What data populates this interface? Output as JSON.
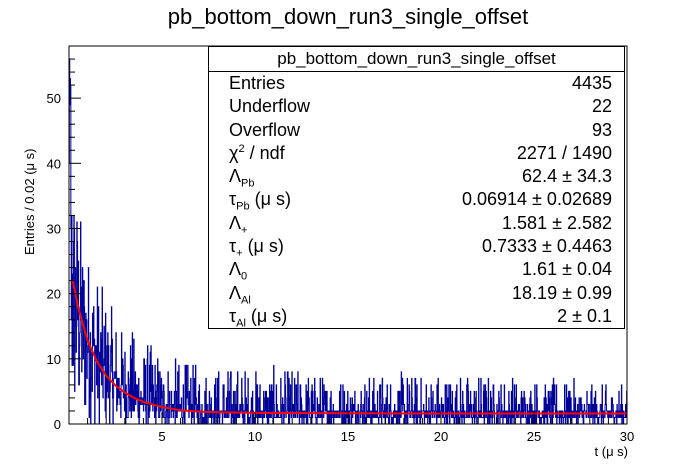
{
  "title": "pb_bottom_down_run3_single_offset",
  "chart_data": {
    "type": "bar",
    "title": "pb_bottom_down_run3_single_offset",
    "xlabel": "t (μ s)",
    "ylabel": "Entries / 0.02 (μ s)",
    "xlim": [
      0,
      30
    ],
    "ylim": [
      0,
      58
    ],
    "xticks": [
      5,
      10,
      15,
      20,
      25,
      30
    ],
    "yticks": [
      0,
      10,
      20,
      30,
      40,
      50
    ],
    "grid": false,
    "legend": "top-right",
    "histogram": {
      "name": "pb_bottom_down_run3_single_offset",
      "bin_width": 0.02,
      "color": "#000099",
      "envelope_x": [
        0.1,
        0.3,
        0.5,
        0.8,
        1.0,
        1.5,
        2.0,
        2.5,
        3.0,
        4.0,
        5.0,
        6.0,
        8.0,
        10.0,
        15.0,
        20.0,
        25.0,
        30.0
      ],
      "envelope_mean": [
        24,
        21,
        19,
        16,
        14,
        11,
        8.5,
        6.8,
        5.5,
        3.8,
        3.0,
        2.4,
        1.9,
        1.7,
        1.6,
        1.6,
        1.6,
        1.6
      ],
      "envelope_max": [
        56,
        40,
        35,
        30,
        28,
        23,
        20,
        17,
        15,
        13,
        11,
        10,
        9,
        9,
        8,
        8,
        7,
        6
      ]
    },
    "fit": {
      "name": "fit",
      "color": "#ff0000",
      "x": [
        0.2,
        0.5,
        1.0,
        1.5,
        2.0,
        2.5,
        3.0,
        3.5,
        4.0,
        5.0,
        6.0,
        7.0,
        8.0,
        10.0,
        15.0,
        20.0,
        25.0,
        30.0
      ],
      "y": [
        22.0,
        17.8,
        12.8,
        9.6,
        7.4,
        5.9,
        4.8,
        4.0,
        3.4,
        2.6,
        2.1,
        1.9,
        1.8,
        1.7,
        1.65,
        1.62,
        1.61,
        1.61
      ]
    }
  },
  "stats": {
    "title": "pb_bottom_down_run3_single_offset",
    "rows": [
      {
        "k": "Entries",
        "v": "4435"
      },
      {
        "k": "Underflow",
        "v": "22"
      },
      {
        "k": "Overflow",
        "v": "93"
      },
      {
        "k_main": "χ",
        "k_sup": "2",
        "k_rest": " / ndf",
        "v": "2271 / 1490"
      },
      {
        "k_main": "Λ",
        "k_sub": "Pb",
        "v": "62.4 ± 34.3"
      },
      {
        "k_main": "τ",
        "k_sub": "Pb",
        "k_rest": " (μ s)",
        "v": "0.06914 ± 0.02689"
      },
      {
        "k_main": "Λ",
        "k_sub": "+",
        "v": "1.581 ± 2.582"
      },
      {
        "k_main": "τ",
        "k_sub": "+",
        "k_rest": " (μ s)",
        "v": "0.7333 ± 0.4463"
      },
      {
        "k_main": "Λ",
        "k_sub": "0",
        "v": "1.61 ± 0.04"
      },
      {
        "k_main": "Λ",
        "k_sub": "Al",
        "v": "18.19 ± 0.99"
      },
      {
        "k_main": "τ",
        "k_sub": "Al",
        "k_rest": " (μ s)",
        "v": "2 ± 0.1"
      }
    ]
  }
}
